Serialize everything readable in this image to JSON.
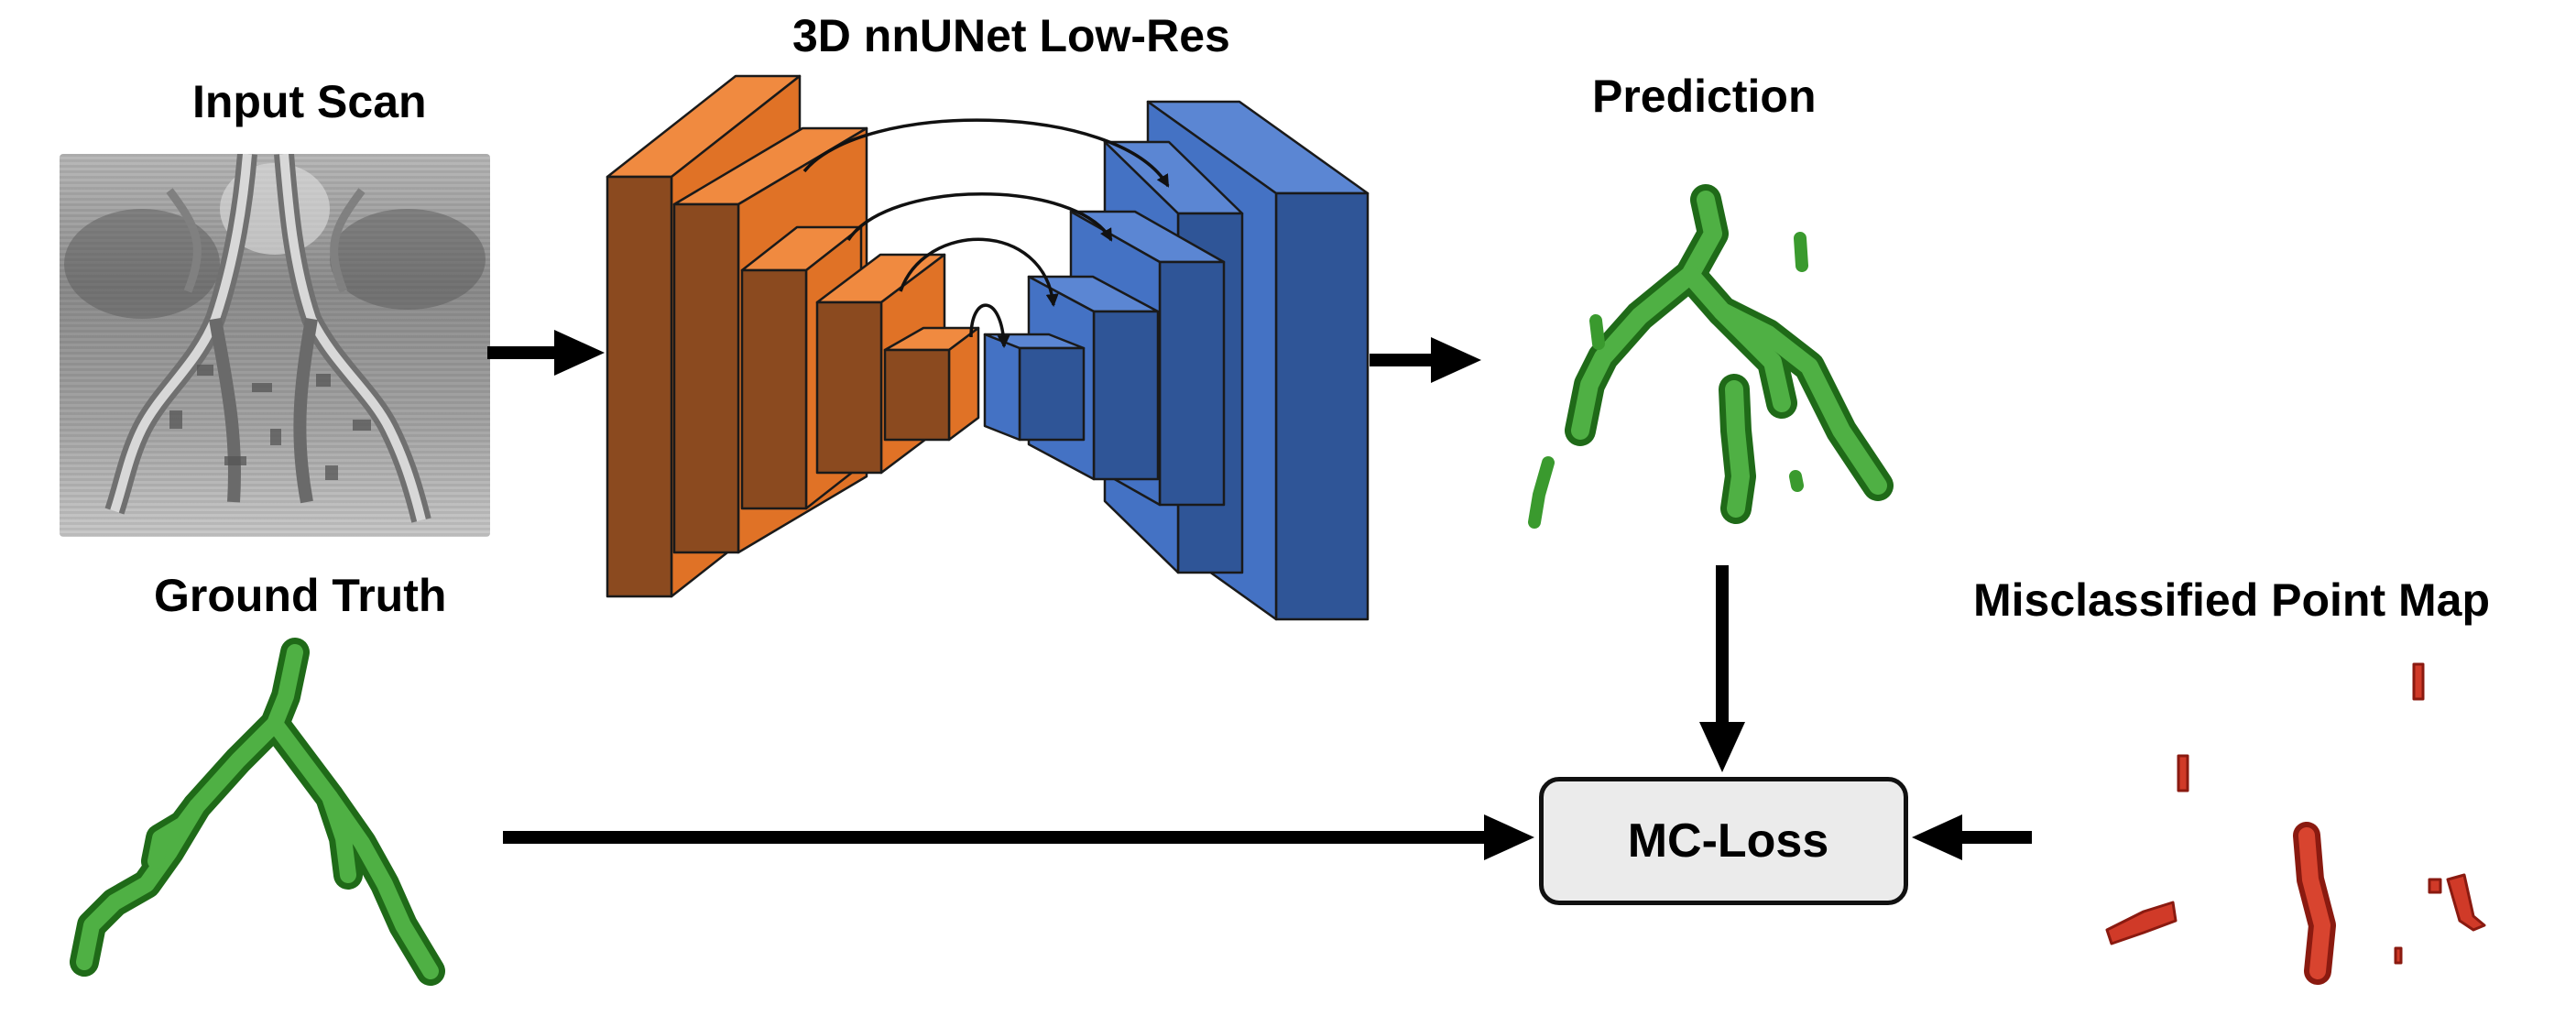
{
  "labels": {
    "input_scan": "Input Scan",
    "network": "3D nnUNet Low-Res",
    "prediction": "Prediction",
    "ground_truth": "Ground Truth",
    "misclassified_map": "Misclassified Point Map",
    "loss": "MC-Loss"
  },
  "colors": {
    "encoder_front": "#8b4a1f",
    "encoder_face": "#ed7d31",
    "decoder_front": "#4472c4",
    "decoder_side": "#2f5597",
    "prediction_vessels": "#3a9a2e",
    "ground_truth_vessels": "#3a9a2e",
    "misclassified_points": "#d03a28",
    "loss_box": "#ebebeb",
    "arrows": "#000000"
  },
  "icons": {
    "input_scan": "ct-volume-render",
    "prediction": "vessel-tree-render",
    "ground_truth": "vessel-tree-render",
    "misclassified_map": "error-point-cloud"
  }
}
